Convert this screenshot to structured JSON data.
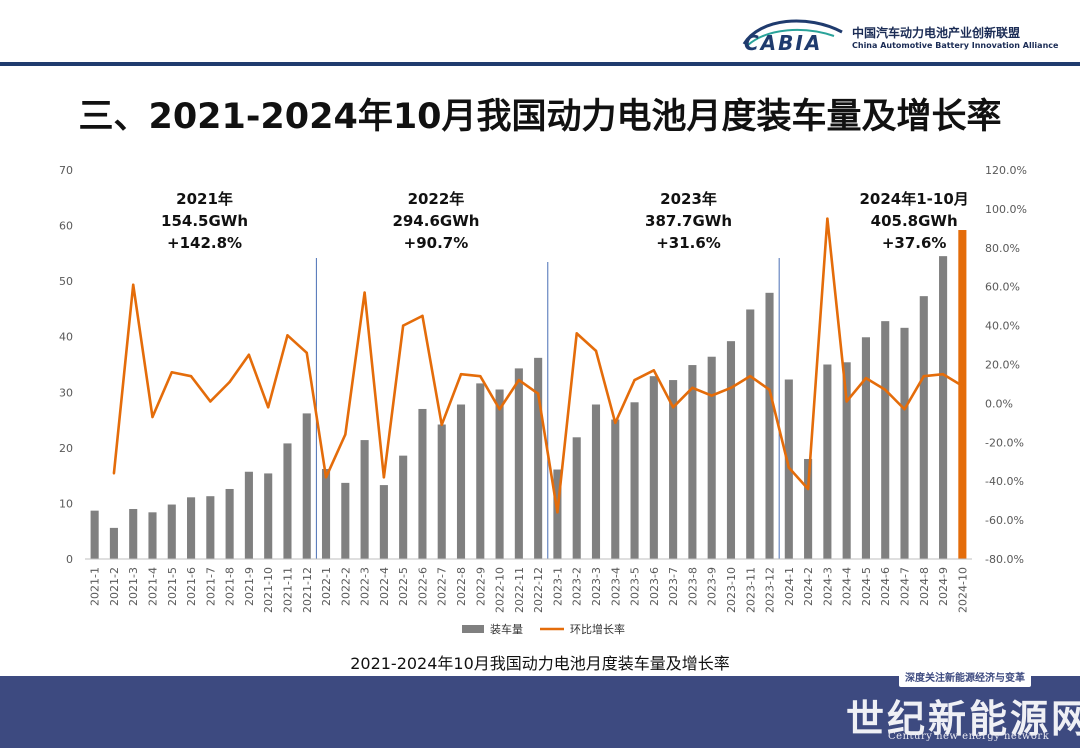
{
  "header": {
    "org_cn": "中国汽车动力电池产业创新联盟",
    "org_en": "China Automotive Battery Innovation Alliance",
    "logo_text": "CABIA",
    "brand_color": "#1f3b6e"
  },
  "page_title": "三、2021-2024年10月我国动力电池月度装车量及增长率",
  "caption": "2021-2024年10月我国动力电池月度装车量及增长率",
  "footer": {
    "tagline": "深度关注新能源经济与变革",
    "brand": "世纪新能源网",
    "brand_en": "Century new energy network",
    "color": "#3d4a80"
  },
  "chart_data": {
    "type": "bar",
    "categories": [
      "2021-1",
      "2021-2",
      "2021-3",
      "2021-4",
      "2021-5",
      "2021-6",
      "2021-7",
      "2021-8",
      "2021-9",
      "2021-10",
      "2021-11",
      "2021-12",
      "2022-1",
      "2022-2",
      "2022-3",
      "2022-4",
      "2022-5",
      "2022-6",
      "2022-7",
      "2022-8",
      "2022-9",
      "2022-10",
      "2022-11",
      "2022-12",
      "2023-1",
      "2023-2",
      "2023-3",
      "2023-4",
      "2023-5",
      "2023-6",
      "2023-7",
      "2023-8",
      "2023-9",
      "2023-10",
      "2023-11",
      "2023-12",
      "2024-1",
      "2024-2",
      "2024-3",
      "2024-4",
      "2024-5",
      "2024-6",
      "2024-7",
      "2024-8",
      "2024-9",
      "2024-10"
    ],
    "series": [
      {
        "name": "装车量",
        "type": "bar",
        "axis": "left",
        "color": "#808080",
        "highlight_color": "#e46c0a",
        "values": [
          8.7,
          5.6,
          9.0,
          8.4,
          9.8,
          11.1,
          11.3,
          12.6,
          15.7,
          15.4,
          20.8,
          26.2,
          16.2,
          13.7,
          21.4,
          13.3,
          18.6,
          27.0,
          24.2,
          27.8,
          31.6,
          30.5,
          34.3,
          36.2,
          16.1,
          21.9,
          27.8,
          25.1,
          28.2,
          32.9,
          32.2,
          34.9,
          36.4,
          39.2,
          44.9,
          47.9,
          32.3,
          18.0,
          35.0,
          35.4,
          39.9,
          42.8,
          41.6,
          47.3,
          54.5,
          59.2
        ]
      },
      {
        "name": "环比增长率",
        "type": "line",
        "axis": "right",
        "color": "#e46c0a",
        "values": [
          null,
          -36,
          61,
          -7,
          16,
          14,
          1,
          11,
          25,
          -2,
          35,
          26,
          -38,
          -16,
          57,
          -38,
          40,
          45,
          -11,
          15,
          14,
          -3,
          12,
          5,
          -56,
          36,
          27,
          -10,
          12,
          17,
          -2,
          8,
          4,
          8,
          14,
          7,
          -33,
          -44,
          95,
          1,
          13,
          7,
          -3,
          14,
          15,
          9
        ]
      }
    ],
    "ylim_left": [
      0,
      70
    ],
    "yticks_left": [
      "0",
      "10",
      "20",
      "30",
      "40",
      "50",
      "60",
      "70"
    ],
    "ylim_right": [
      -80,
      120
    ],
    "yticks_right": [
      "-80.0%",
      "-60.0%",
      "-40.0%",
      "-20.0%",
      "0.0%",
      "20.0%",
      "40.0%",
      "60.0%",
      "80.0%",
      "100.0%",
      "120.0%"
    ],
    "legend_position": "bottom-center",
    "gridlines": false,
    "annotations": [
      {
        "lines": [
          "2021年",
          "154.5GWh",
          "+142.8%"
        ],
        "center_category": 5.7
      },
      {
        "lines": [
          "2022年",
          "294.6GWh",
          "+90.7%"
        ],
        "center_category": 17.7
      },
      {
        "lines": [
          "2023年",
          "387.7GWh",
          "+31.6%"
        ],
        "center_category": 30.8
      },
      {
        "lines": [
          "2024年1-10月",
          "405.8GWh",
          "+37.6%"
        ],
        "center_category": 42.5
      }
    ],
    "year_separators_after_category": [
      11,
      23,
      35
    ]
  }
}
